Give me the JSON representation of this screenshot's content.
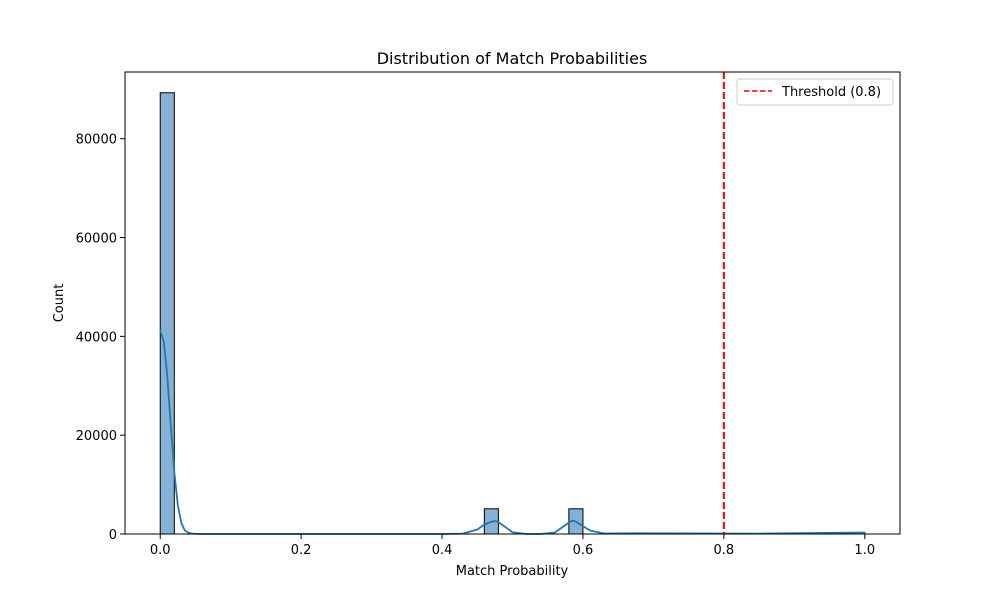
{
  "chart_data": {
    "type": "bar",
    "title": "Distribution of Match Probabilities",
    "xlabel": "Match Probability",
    "ylabel": "Count",
    "xlim": [
      -0.05,
      1.05
    ],
    "ylim": [
      0,
      93500
    ],
    "x_ticks": [
      0.0,
      0.2,
      0.4,
      0.6,
      0.8,
      1.0
    ],
    "x_tick_labels": [
      "0.0",
      "0.2",
      "0.4",
      "0.6",
      "0.8",
      "1.0"
    ],
    "y_ticks": [
      0,
      20000,
      40000,
      60000,
      80000
    ],
    "y_tick_labels": [
      "0",
      "20000",
      "40000",
      "60000",
      "80000"
    ],
    "grid": false,
    "bins": [
      {
        "x0": 0.0,
        "x1": 0.02,
        "count": 89300
      },
      {
        "x0": 0.46,
        "x1": 0.48,
        "count": 5100
      },
      {
        "x0": 0.58,
        "x1": 0.6,
        "count": 5100
      }
    ],
    "kde": {
      "x": [
        0.0,
        0.005,
        0.01,
        0.015,
        0.02,
        0.025,
        0.03,
        0.035,
        0.04,
        0.045,
        0.05,
        0.06,
        0.08,
        0.2,
        0.4,
        0.43,
        0.45,
        0.46,
        0.47,
        0.475,
        0.48,
        0.49,
        0.5,
        0.52,
        0.54,
        0.56,
        0.57,
        0.58,
        0.585,
        0.59,
        0.6,
        0.61,
        0.63,
        0.67,
        0.75,
        0.85,
        1.0
      ],
      "y": [
        41200,
        39000,
        32000,
        22000,
        12500,
        5800,
        2200,
        700,
        250,
        80,
        30,
        0,
        0,
        0,
        0,
        80,
        900,
        1900,
        2500,
        2600,
        2400,
        1400,
        350,
        0,
        0,
        300,
        1300,
        2300,
        2700,
        2500,
        1600,
        700,
        100,
        150,
        120,
        80,
        300
      ]
    },
    "threshold": {
      "x": 0.8,
      "label": "Threshold (0.8)",
      "color": "#ff0000"
    },
    "legend_position": "top-right",
    "colors": {
      "bar_fill": "#84b1d4",
      "bar_edge": "#000000",
      "kde": "#1f77b4",
      "threshold": "#ff0000"
    }
  }
}
